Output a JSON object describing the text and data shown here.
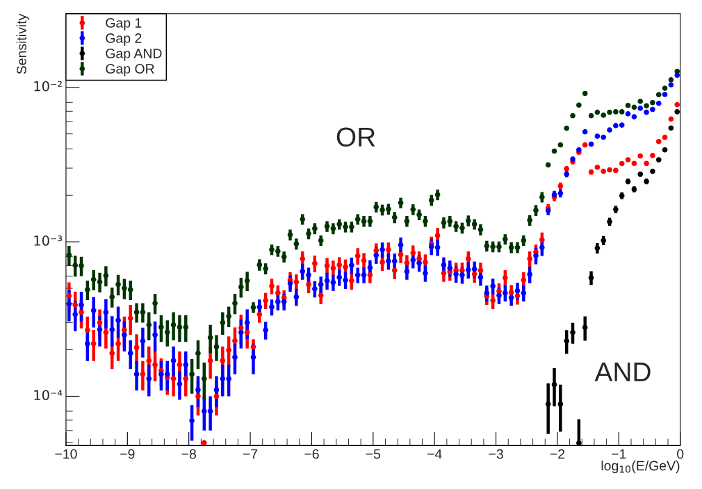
{
  "chart_data": {
    "type": "scatter",
    "xlabel": "log$_{10}$(E/GeV)",
    "ylabel": "Sensitivity",
    "log": "y",
    "grid": false,
    "legend": "top left",
    "marker": "circle",
    "xlim": [
      -10,
      0
    ],
    "ylim": [
      4.8e-05,
      0.03
    ],
    "xticks": [
      {
        "value": -10,
        "label": "−10"
      },
      {
        "value": -9,
        "label": "−9"
      },
      {
        "value": -8,
        "label": "−8"
      },
      {
        "value": -7,
        "label": "−7"
      },
      {
        "value": -6,
        "label": "−6"
      },
      {
        "value": -5,
        "label": "−5"
      },
      {
        "value": -4,
        "label": "−4"
      },
      {
        "value": -3,
        "label": "−3"
      },
      {
        "value": -2,
        "label": "−2"
      },
      {
        "value": -1,
        "label": "−1"
      },
      0
    ],
    "yticks": [
      {
        "value": 0.0001,
        "label": "10⁻⁴"
      },
      {
        "value": 0.001,
        "label": "10⁻³"
      },
      {
        "value": 0.01,
        "label": "10⁻²"
      }
    ],
    "annotations": [
      "OR",
      "AND"
    ],
    "x": [
      -9.95,
      -9.85,
      -9.75,
      -9.65,
      -9.55,
      -9.45,
      -9.35,
      -9.25,
      -9.15,
      -9.05,
      -8.95,
      -8.85,
      -8.75,
      -8.65,
      -8.55,
      -8.45,
      -8.35,
      -8.25,
      -8.15,
      -8.05,
      -7.95,
      -7.85,
      -7.75,
      -7.65,
      -7.55,
      -7.45,
      -7.35,
      -7.25,
      -7.15,
      -7.05,
      -6.95,
      -6.85,
      -6.75,
      -6.65,
      -6.55,
      -6.45,
      -6.35,
      -6.25,
      -6.15,
      -6.05,
      -5.95,
      -5.85,
      -5.75,
      -5.65,
      -5.55,
      -5.45,
      -5.35,
      -5.25,
      -5.15,
      -5.05,
      -4.95,
      -4.85,
      -4.75,
      -4.65,
      -4.55,
      -4.45,
      -4.35,
      -4.25,
      -4.15,
      -4.05,
      -3.95,
      -3.85,
      -3.75,
      -3.65,
      -3.55,
      -3.45,
      -3.35,
      -3.25,
      -3.15,
      -3.05,
      -2.95,
      -2.85,
      -2.75,
      -2.65,
      -2.55,
      -2.45,
      -2.35,
      -2.25,
      -2.15,
      -2.05,
      -1.95,
      -1.85,
      -1.75,
      -1.65,
      -1.55,
      -1.45,
      -1.35,
      -1.25,
      -1.15,
      -1.05,
      -0.95,
      -0.85,
      -0.75,
      -0.65,
      -0.55,
      -0.45,
      -0.35,
      -0.25,
      -0.15,
      -0.05
    ],
    "series": [
      {
        "name": "Gap 1",
        "color": "#ff0000",
        "values": [
          0.000447,
          0.00039,
          0.00035,
          0.000268,
          0.000219,
          0.0003,
          0.000259,
          0.00019,
          0.000219,
          0.000268,
          0.00032,
          0.000207,
          0.000139,
          0.00017,
          0.00016,
          0.000146,
          0.000132,
          0.00013,
          0.00016,
          0.00013,
          null,
          0.0001,
          5e-05,
          0.00017,
          0.0001,
          0.00017,
          0.000199,
          0.000229,
          0.000277,
          0.000259,
          0.000209,
          0.000339,
          0.000417,
          0.000517,
          0.000467,
          0.000435,
          0.000565,
          0.00055,
          0.000777,
          0.00053,
          0.000725,
          0.00045,
          0.0007,
          0.000676,
          0.00071,
          0.000688,
          0.00056,
          0.00081,
          0.000755,
          0.00061,
          0.000877,
          0.000738,
          0.00089,
          0.000653,
          0.000827,
          0.00073,
          0.000847,
          0.000777,
          0.000738,
          0.00097,
          0.0011,
          0.000626,
          0.00064,
          0.000653,
          0.000653,
          0.000777,
          0.000618,
          0.000653,
          0.000445,
          0.000417,
          0.000479,
          0.000585,
          0.00047,
          0.000447,
          0.000565,
          0.000777,
          0.00086,
          0.00103,
          0.00165,
          0.00195,
          0.0023,
          0.00297,
          0.0033,
          0.0038,
          0.00424,
          0.00283,
          0.00304,
          0.00286,
          0.00292,
          0.0029,
          0.00321,
          0.0034,
          0.00322,
          0.0036,
          0.00322,
          0.00362,
          0.00446,
          0.00475,
          0.00624,
          0.00773
        ],
        "errors": [
          0.0001,
          8.5e-05,
          7.5e-05,
          6e-05,
          5e-05,
          6.5e-05,
          5.5e-05,
          4e-05,
          5e-05,
          6e-05,
          7e-05,
          4.5e-05,
          3e-05,
          4e-05,
          3.5e-05,
          3e-05,
          3e-05,
          3e-05,
          3.5e-05,
          3e-05,
          null,
          2.5e-05,
          null,
          4e-05,
          2.5e-05,
          4e-05,
          4.5e-05,
          5e-05,
          6e-05,
          5.5e-05,
          2.5e-05,
          4e-05,
          5e-05,
          6e-05,
          5.5e-05,
          5e-05,
          7e-05,
          6.5e-05,
          9e-05,
          6.5e-05,
          9e-05,
          5.5e-05,
          8.5e-05,
          8e-05,
          8.5e-05,
          8e-05,
          7e-05,
          0.0001,
          9e-05,
          7e-05,
          0.0001,
          9e-05,
          0.0001,
          8e-05,
          0.0001,
          9e-05,
          0.0001,
          9e-05,
          9e-05,
          0.00011,
          0.00013,
          7.5e-05,
          8e-05,
          8e-05,
          8e-05,
          9e-05,
          7.5e-05,
          8e-05,
          5.5e-05,
          5e-05,
          6e-05,
          7e-05,
          5.5e-05,
          5.5e-05,
          7e-05,
          9e-05,
          0.0001,
          0.00012,
          0.0001,
          0.00012,
          0.00012,
          0.00012,
          0.00012,
          0.00012,
          0.00013,
          0.0001,
          0.0001,
          0.0001,
          0.0001,
          0.0001,
          0.0001,
          0.0001,
          0.0001,
          0.00011,
          0.0001,
          0.00011,
          0.00013,
          0.00014,
          0.00018,
          0.00023
        ]
      },
      {
        "name": "Gap 2",
        "color": "#0000ff",
        "values": [
          0.000396,
          0.000339,
          0.00039,
          0.000219,
          0.000359,
          0.00027,
          0.00035,
          0.00027,
          0.00031,
          0.00025,
          0.00019,
          0.000139,
          0.000228,
          0.00013,
          0.00025,
          0.000139,
          0.000139,
          0.00017,
          0.00012,
          0.00016,
          6.95e-05,
          0.00011,
          8e-05,
          8e-05,
          0.00011,
          0.00013,
          0.00013,
          0.000179,
          0.000259,
          0.0003,
          0.000179,
          0.000378,
          0.000268,
          0.000378,
          0.00041,
          0.00041,
          0.00054,
          0.00044,
          0.000643,
          0.00061,
          0.000496,
          0.00053,
          0.00056,
          0.000546,
          0.000589,
          0.000565,
          0.000705,
          0.00061,
          0.00061,
          0.00068,
          0.00082,
          0.00089,
          0.00075,
          0.00075,
          0.000956,
          0.000643,
          0.000763,
          0.00073,
          0.000626,
          0.00093,
          0.00092,
          0.000708,
          0.000676,
          0.000618,
          0.00061,
          0.000658,
          0.000665,
          0.000589,
          0.000466,
          0.000517,
          0.00045,
          0.000466,
          0.000435,
          0.000483,
          0.000466,
          0.000615,
          0.000815,
          0.00092,
          0.00159,
          0.00202,
          0.00206,
          0.00274,
          0.00343,
          0.00394,
          0.00516,
          0.00429,
          0.00483,
          0.00476,
          0.0053,
          0.00565,
          0.0057,
          0.00674,
          0.00645,
          0.00732,
          0.0069,
          0.0072,
          0.00788,
          0.009,
          0.0104,
          0.012
        ],
        "errors": [
          9e-05,
          7.5e-05,
          8.5e-05,
          5e-05,
          8e-05,
          6e-05,
          7.5e-05,
          6e-05,
          7e-05,
          5.5e-05,
          4e-05,
          3e-05,
          5e-05,
          3e-05,
          5.5e-05,
          3e-05,
          3e-05,
          4e-05,
          2.5e-05,
          3.5e-05,
          1.8e-05,
          2.5e-05,
          2e-05,
          2e-05,
          2.5e-05,
          3e-05,
          3e-05,
          4e-05,
          5.5e-05,
          6.5e-05,
          4e-05,
          4.5e-05,
          3.5e-05,
          4.5e-05,
          5e-05,
          5e-05,
          6.5e-05,
          5.5e-05,
          7.5e-05,
          7e-05,
          6e-05,
          6.5e-05,
          7e-05,
          6.5e-05,
          7e-05,
          7e-05,
          8.5e-05,
          7e-05,
          7e-05,
          8e-05,
          0.0001,
          0.0001,
          9e-05,
          9e-05,
          0.00011,
          7.5e-05,
          9e-05,
          9e-05,
          7.5e-05,
          0.00011,
          0.00011,
          8.5e-05,
          8e-05,
          7.5e-05,
          7.5e-05,
          8e-05,
          8e-05,
          7e-05,
          5.5e-05,
          6e-05,
          5.5e-05,
          5.5e-05,
          5e-05,
          6e-05,
          5.5e-05,
          7.5e-05,
          0.0001,
          0.00011,
          0.0001,
          0.00012,
          0.00012,
          0.00012,
          0.00012,
          0.00012,
          0.00015,
          0.00013,
          0.00014,
          0.00014,
          0.00016,
          0.00017,
          0.00017,
          0.0002,
          0.00019,
          0.00022,
          0.00021,
          0.00022,
          0.00024,
          0.00027,
          0.00031,
          0.00036
        ]
      },
      {
        "name": "Gap AND",
        "color": "#000000",
        "x": [
          -2.15,
          -2.05,
          -1.95,
          -1.85,
          -1.75,
          -1.65,
          -1.55,
          -1.45,
          -1.35,
          -1.25,
          -1.15,
          -1.05,
          -0.95,
          -0.85,
          -0.75,
          -0.65,
          -0.55,
          -0.45,
          -0.35,
          -0.25,
          -0.15,
          -0.05
        ],
        "values": [
          8.9e-05,
          0.000119,
          8.9e-05,
          0.000228,
          0.000259,
          4.98e-05,
          0.000279,
          0.000585,
          0.00091,
          0.00102,
          0.00135,
          0.00162,
          0.00199,
          0.00246,
          0.00219,
          0.00274,
          0.00246,
          0.00286,
          0.0034,
          0.00394,
          0.00546,
          0.00695
        ],
        "errors": [
          3.2e-05,
          3.3e-05,
          3e-05,
          4e-05,
          4e-05,
          [
            4.8e-05,
            7.1e-05
          ],
          5e-05,
          6e-05,
          7e-05,
          7e-05,
          8e-05,
          9e-05,
          0.0001,
          0.0001,
          0.0001,
          0.0001,
          0.0001,
          0.0001,
          0.00011,
          0.00012,
          0.00016,
          0.00021
        ]
      },
      {
        "name": "Gap OR",
        "color": "#003300",
        "values": [
          0.00082,
          0.000705,
          0.0007,
          0.00049,
          0.00057,
          0.00055,
          0.000605,
          0.00044,
          0.00053,
          0.0005,
          0.00049,
          0.00035,
          0.00035,
          0.00029,
          0.0004,
          0.00028,
          0.00026,
          0.00029,
          0.00028,
          0.00028,
          0.000139,
          0.00019,
          0.00013,
          0.00024,
          0.000209,
          0.0003,
          0.00033,
          0.0004,
          0.00051,
          0.00056,
          0.000376,
          0.00071,
          0.00067,
          0.00089,
          0.00087,
          0.0008,
          0.00111,
          0.00097,
          0.0014,
          0.00113,
          0.00122,
          0.00102,
          0.00126,
          0.00122,
          0.0013,
          0.00125,
          0.00125,
          0.0014,
          0.00136,
          0.00136,
          0.00168,
          0.00161,
          0.00163,
          0.00144,
          0.00179,
          0.00136,
          0.00162,
          0.0015,
          0.00136,
          0.00186,
          0.00202,
          0.00133,
          0.00136,
          0.00126,
          0.00123,
          0.00137,
          0.0013,
          0.0012,
          0.00094,
          0.00093,
          0.00093,
          0.00104,
          0.00092,
          0.00092,
          0.00102,
          0.00138,
          0.0016,
          0.00195,
          0.00315,
          0.00387,
          0.00424,
          0.00544,
          0.00655,
          0.00768,
          0.00914,
          0.00655,
          0.0069,
          0.0066,
          0.0069,
          0.00695,
          0.00695,
          0.00764,
          0.00744,
          0.00812,
          0.0076,
          0.00797,
          0.00897,
          0.00987,
          0.0112,
          0.0127
        ],
        "errors": [
          0.00012,
          0.00011,
          0.0001,
          7e-05,
          8.5e-05,
          8e-05,
          9e-05,
          6.5e-05,
          8e-05,
          7.5e-05,
          7e-05,
          5e-05,
          5e-05,
          6e-05,
          6e-05,
          5.5e-05,
          5e-05,
          6e-05,
          5.5e-05,
          5.5e-05,
          3.5e-05,
          4e-05,
          3.5e-05,
          5e-05,
          4e-05,
          5e-05,
          5e-05,
          6e-05,
          7.5e-05,
          8e-05,
          3e-05,
          6e-05,
          5.5e-05,
          7e-05,
          7e-05,
          6.5e-05,
          9e-05,
          8e-05,
          0.00011,
          9e-05,
          0.0001,
          8e-05,
          0.0001,
          0.0001,
          0.0001,
          0.0001,
          0.0001,
          0.00011,
          0.00011,
          0.00011,
          0.00013,
          0.00013,
          0.00013,
          0.00012,
          0.00014,
          0.00011,
          0.00013,
          0.00012,
          0.00011,
          0.00015,
          0.00016,
          0.00011,
          0.00011,
          0.0001,
          0.0001,
          0.00011,
          0.0001,
          0.0001,
          7.5e-05,
          7.5e-05,
          7.5e-05,
          8e-05,
          7.5e-05,
          7.5e-05,
          8e-05,
          0.00011,
          0.00013,
          0.00015,
          0.0001,
          0.00012,
          0.00013,
          0.00016,
          0.0002,
          0.00023,
          0.00027,
          0.0002,
          0.0002,
          0.0002,
          0.0002,
          0.0002,
          0.0002,
          0.00023,
          0.00022,
          0.00024,
          0.00023,
          0.00024,
          0.00027,
          0.0003,
          0.00034,
          0.00038
        ]
      }
    ]
  }
}
